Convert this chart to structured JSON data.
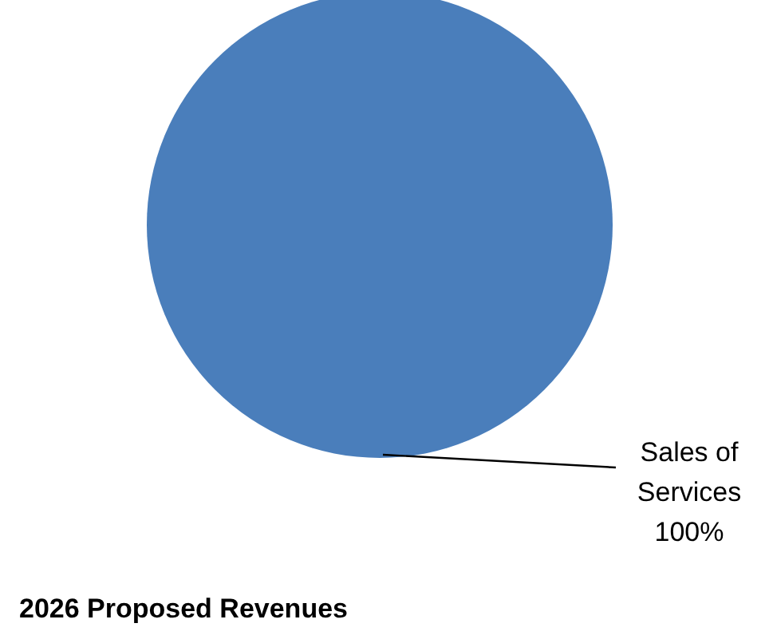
{
  "chart_data": {
    "type": "pie",
    "title": "2026 Proposed Revenues",
    "categories": [
      "Sales of Services"
    ],
    "values": [
      100
    ],
    "colors": [
      "#4a7ebb"
    ],
    "value_labels": [
      "100%"
    ]
  }
}
